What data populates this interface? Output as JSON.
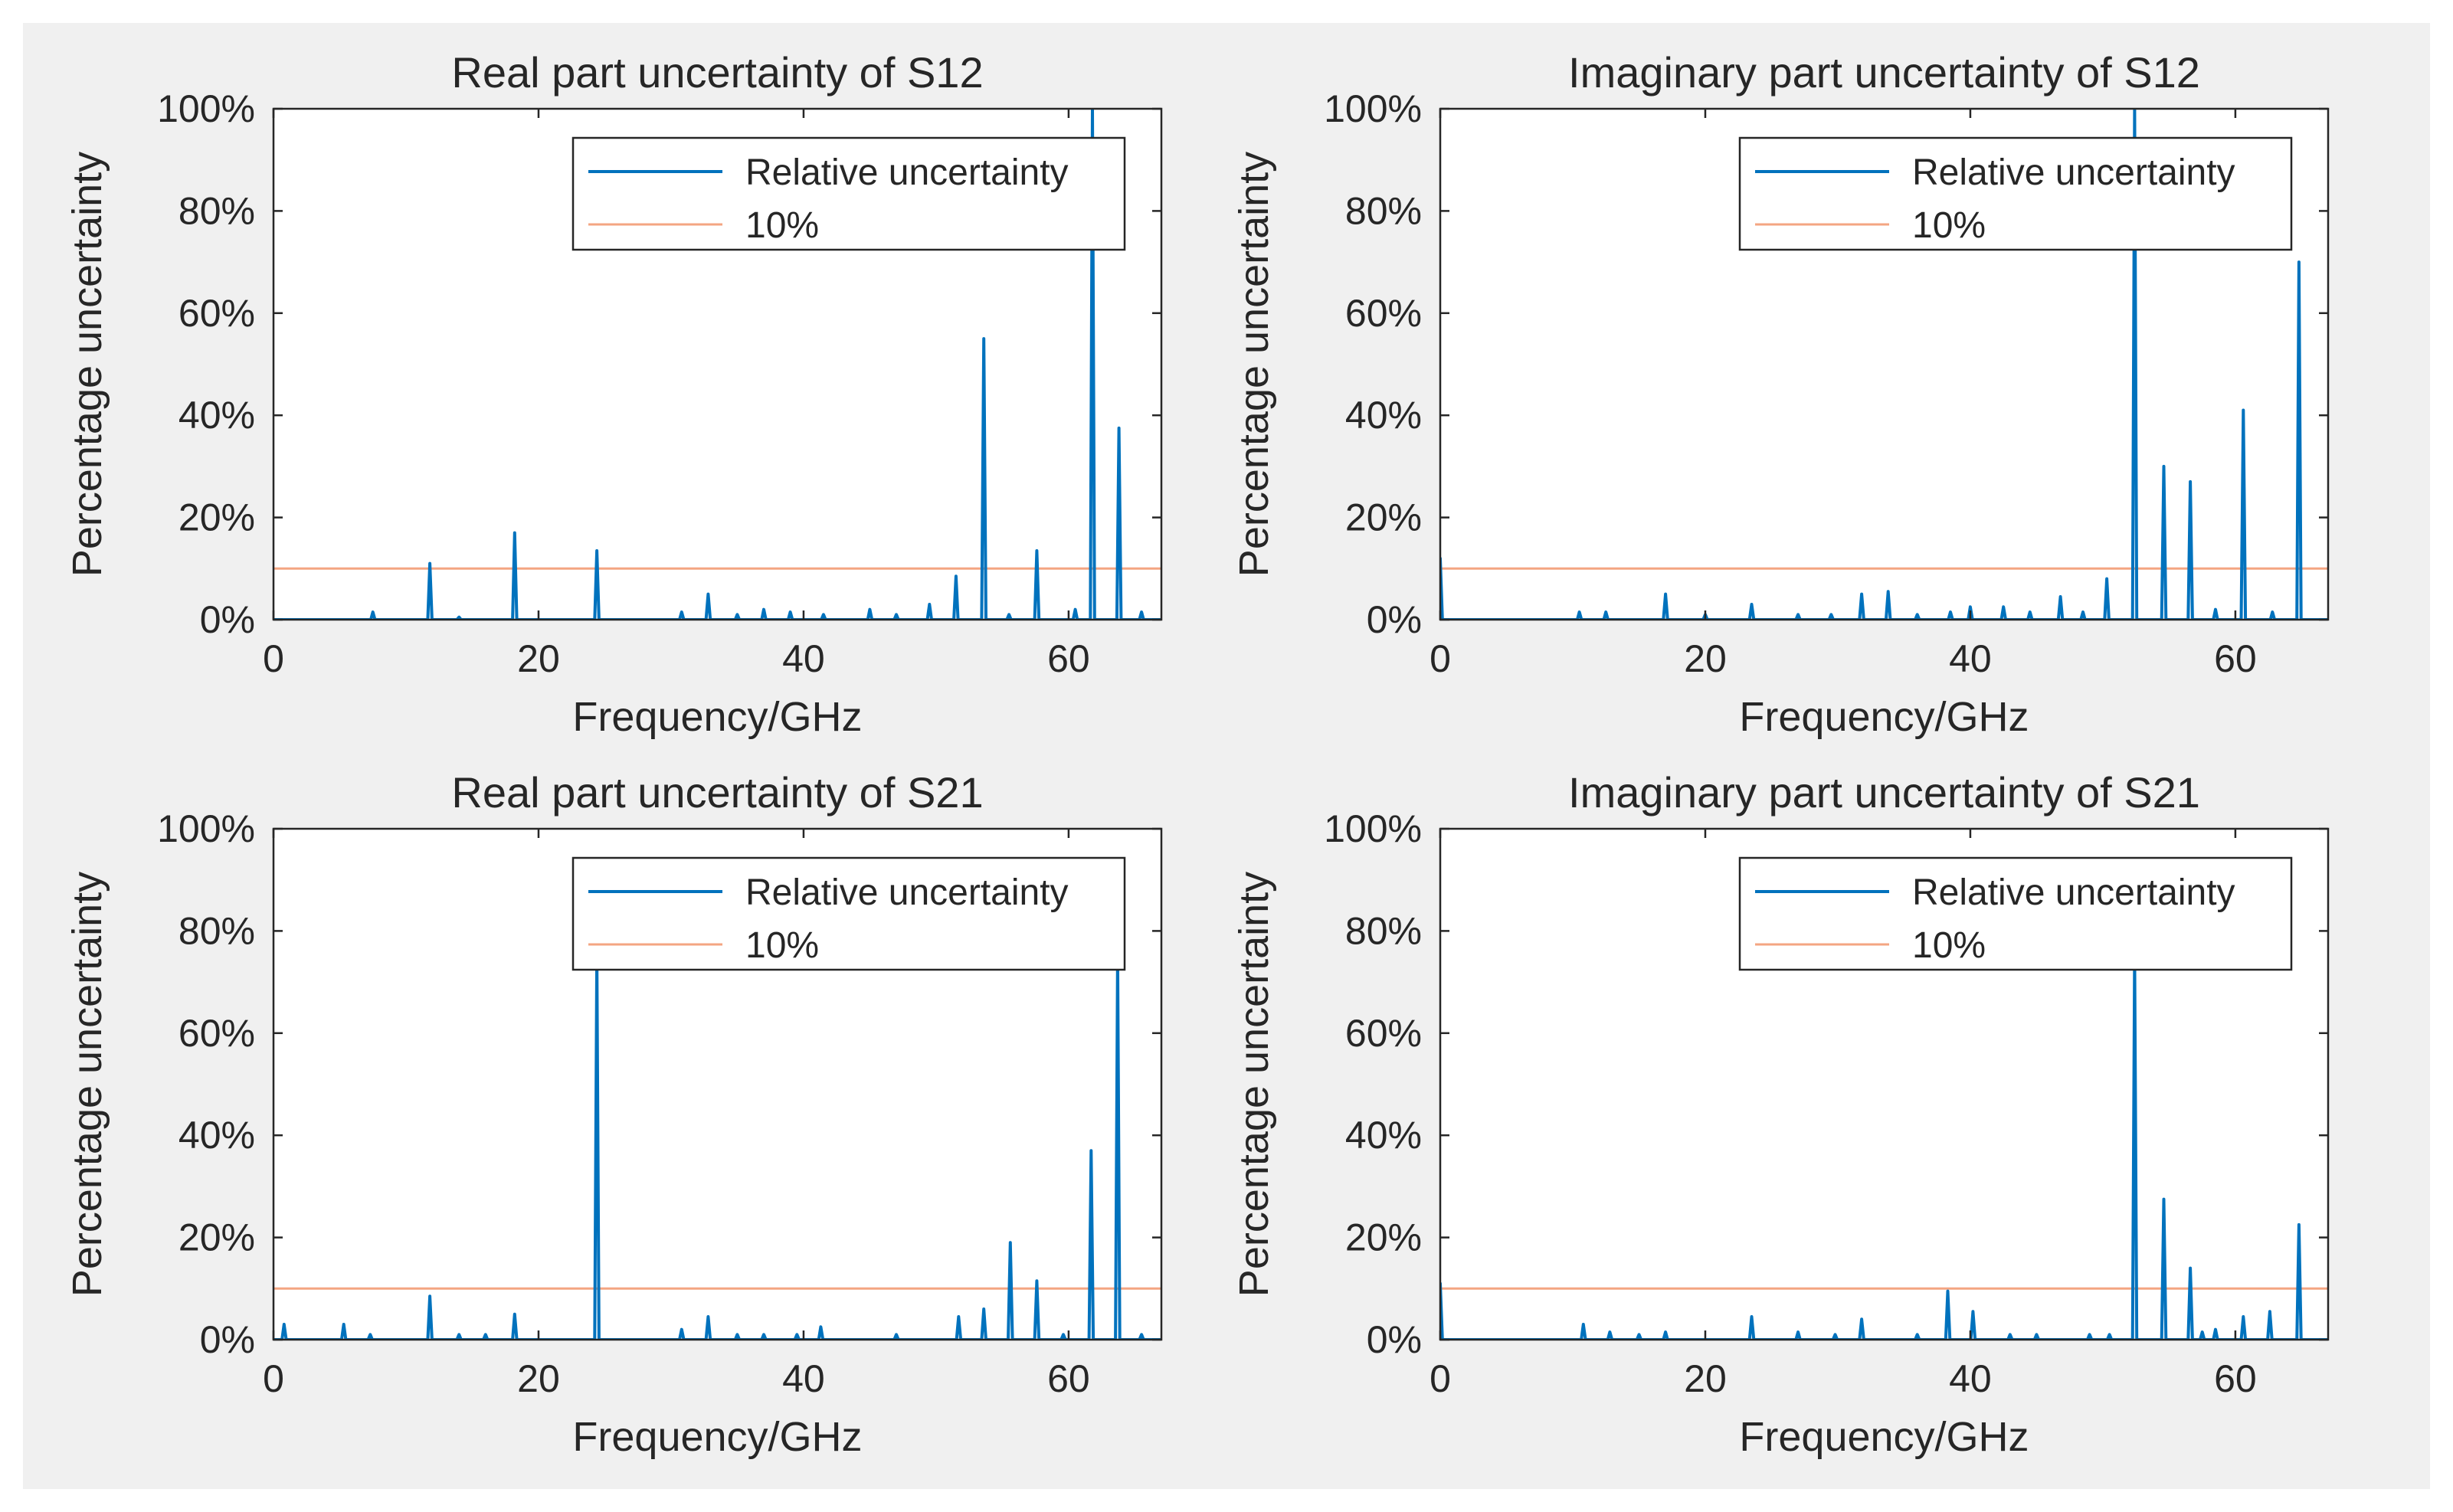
{
  "colors": {
    "series": "#0072bd",
    "threshold": "#f4a582",
    "figure_bg": "#f0f0f0",
    "axes_bg": "#ffffff"
  },
  "chart_data": [
    {
      "type": "line",
      "title": "Real part uncertainty of S12",
      "xlabel": "Frequency/GHz",
      "ylabel": "Percentage uncertainty",
      "xlim": [
        0,
        67
      ],
      "ylim": [
        0,
        100
      ],
      "xticks": [
        0,
        20,
        40,
        60
      ],
      "xtick_labels": [
        "0",
        "20",
        "40",
        "60"
      ],
      "yticks": [
        0,
        20,
        40,
        60,
        80,
        100
      ],
      "ytick_labels": [
        "0%",
        "20%",
        "40%",
        "60%",
        "80%",
        "100%"
      ],
      "legend_position": "top-right",
      "grid": false,
      "series": [
        {
          "name": "Relative uncertainty",
          "color": "#0072bd",
          "peaks": [
            [
              7.5,
              1.5
            ],
            [
              11.8,
              11
            ],
            [
              14,
              0.5
            ],
            [
              18.2,
              17
            ],
            [
              24.4,
              13.5
            ],
            [
              30.8,
              1.5
            ],
            [
              32.8,
              5
            ],
            [
              35,
              1
            ],
            [
              37,
              2
            ],
            [
              39,
              1.5
            ],
            [
              41.5,
              1
            ],
            [
              45,
              2
            ],
            [
              47,
              1
            ],
            [
              49.5,
              3
            ],
            [
              51.5,
              8.5
            ],
            [
              53.6,
              55
            ],
            [
              55.5,
              1
            ],
            [
              57.6,
              13.5
            ],
            [
              60.5,
              2
            ],
            [
              61.8,
              100
            ],
            [
              63.8,
              37.5
            ],
            [
              65.5,
              1.5
            ]
          ]
        },
        {
          "name": "10%",
          "color": "#f4a582",
          "constant": 10
        }
      ]
    },
    {
      "type": "line",
      "title": "Imaginary part uncertainty of S12",
      "xlabel": "Frequency/GHz",
      "ylabel": "Percentage uncertainty",
      "xlim": [
        0,
        67
      ],
      "ylim": [
        0,
        100
      ],
      "xticks": [
        0,
        20,
        40,
        60
      ],
      "xtick_labels": [
        "0",
        "20",
        "40",
        "60"
      ],
      "yticks": [
        0,
        20,
        40,
        60,
        80,
        100
      ],
      "ytick_labels": [
        "0%",
        "20%",
        "40%",
        "60%",
        "80%",
        "100%"
      ],
      "legend_position": "top-right",
      "grid": false,
      "series": [
        {
          "name": "Relative uncertainty",
          "color": "#0072bd",
          "peaks": [
            [
              0,
              12
            ],
            [
              10.5,
              1.5
            ],
            [
              12.5,
              1.5
            ],
            [
              17,
              5
            ],
            [
              20,
              1
            ],
            [
              23.5,
              3
            ],
            [
              27,
              1
            ],
            [
              29.5,
              1
            ],
            [
              31.8,
              5
            ],
            [
              33.8,
              5.5
            ],
            [
              36,
              1
            ],
            [
              38.5,
              1.5
            ],
            [
              40,
              2.5
            ],
            [
              42.5,
              2.5
            ],
            [
              44.5,
              1.5
            ],
            [
              46.8,
              4.5
            ],
            [
              48.5,
              1.5
            ],
            [
              50.3,
              8
            ],
            [
              52.4,
              100
            ],
            [
              54.6,
              30
            ],
            [
              56.6,
              27
            ],
            [
              58.5,
              2
            ],
            [
              60.6,
              41
            ],
            [
              62.8,
              1.5
            ],
            [
              64.8,
              70
            ]
          ]
        },
        {
          "name": "10%",
          "color": "#f4a582",
          "constant": 10
        }
      ]
    },
    {
      "type": "line",
      "title": "Real part uncertainty of S21",
      "xlabel": "Frequency/GHz",
      "ylabel": "Percentage uncertainty",
      "xlim": [
        0,
        67
      ],
      "ylim": [
        0,
        100
      ],
      "xticks": [
        0,
        20,
        40,
        60
      ],
      "xtick_labels": [
        "0",
        "20",
        "40",
        "60"
      ],
      "yticks": [
        0,
        20,
        40,
        60,
        80,
        100
      ],
      "ytick_labels": [
        "0%",
        "20%",
        "40%",
        "60%",
        "80%",
        "100%"
      ],
      "legend_position": "top-right",
      "grid": false,
      "series": [
        {
          "name": "Relative uncertainty",
          "color": "#0072bd",
          "peaks": [
            [
              0.8,
              3
            ],
            [
              5.3,
              3
            ],
            [
              7.3,
              1
            ],
            [
              11.8,
              8.5
            ],
            [
              14,
              1
            ],
            [
              16,
              1
            ],
            [
              18.2,
              5
            ],
            [
              24.4,
              75
            ],
            [
              30.8,
              2
            ],
            [
              32.8,
              4.5
            ],
            [
              35,
              1
            ],
            [
              37,
              1
            ],
            [
              39.5,
              1
            ],
            [
              41.3,
              2.5
            ],
            [
              47,
              1
            ],
            [
              51.7,
              4.5
            ],
            [
              53.6,
              6
            ],
            [
              55.6,
              19
            ],
            [
              57.6,
              11.5
            ],
            [
              59.6,
              1
            ],
            [
              61.7,
              37
            ],
            [
              63.7,
              75
            ],
            [
              65.5,
              1
            ]
          ]
        },
        {
          "name": "10%",
          "color": "#f4a582",
          "constant": 10
        }
      ]
    },
    {
      "type": "line",
      "title": "Imaginary part uncertainty of S21",
      "xlabel": "Frequency/GHz",
      "ylabel": "Percentage uncertainty",
      "xlim": [
        0,
        67
      ],
      "ylim": [
        0,
        100
      ],
      "xticks": [
        0,
        20,
        40,
        60
      ],
      "xtick_labels": [
        "0",
        "20",
        "40",
        "60"
      ],
      "yticks": [
        0,
        20,
        40,
        60,
        80,
        100
      ],
      "ytick_labels": [
        "0%",
        "20%",
        "40%",
        "60%",
        "80%",
        "100%"
      ],
      "legend_position": "top-right",
      "grid": false,
      "series": [
        {
          "name": "Relative uncertainty",
          "color": "#0072bd",
          "peaks": [
            [
              0,
              11
            ],
            [
              10.8,
              3
            ],
            [
              12.8,
              1.5
            ],
            [
              15,
              1
            ],
            [
              17,
              1.5
            ],
            [
              23.5,
              4.5
            ],
            [
              27,
              1.5
            ],
            [
              29.8,
              1
            ],
            [
              31.8,
              4
            ],
            [
              36,
              1
            ],
            [
              38.3,
              9.5
            ],
            [
              40.2,
              5.5
            ],
            [
              43,
              1
            ],
            [
              45,
              1
            ],
            [
              49,
              1
            ],
            [
              50.5,
              1
            ],
            [
              52.4,
              75
            ],
            [
              54.6,
              27.5
            ],
            [
              56.6,
              14
            ],
            [
              57.5,
              1.5
            ],
            [
              58.5,
              2
            ],
            [
              60.6,
              4.5
            ],
            [
              62.6,
              5.5
            ],
            [
              64.8,
              22.5
            ]
          ]
        },
        {
          "name": "10%",
          "color": "#f4a582",
          "constant": 10
        }
      ]
    }
  ]
}
